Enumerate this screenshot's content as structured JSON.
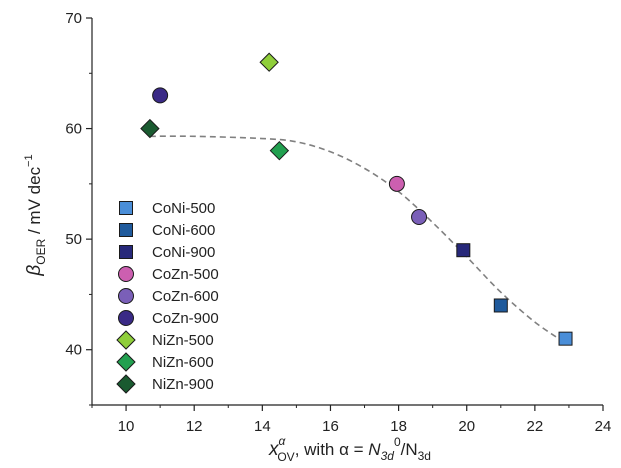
{
  "chart_data": {
    "type": "scatter",
    "xlim": [
      9,
      24
    ],
    "ylim": [
      35,
      70
    ],
    "x_ticks": [
      10,
      12,
      14,
      16,
      18,
      20,
      22,
      24
    ],
    "y_ticks": [
      40,
      50,
      60,
      70
    ],
    "x_minor_ticks": [
      9,
      11,
      13,
      15,
      17,
      19,
      21,
      23
    ],
    "y_minor_ticks": [
      35,
      45,
      55,
      65
    ],
    "ylabel": {
      "symbol": "β",
      "subscript": "OER",
      "units": " / mV dec",
      "units_superscript": "−1"
    },
    "xlabel": {
      "symbol": "x",
      "subscript": "OV",
      "superscript": "α",
      "text": ",  with α = ",
      "n1": "N",
      "n1_sub": "3d",
      "n1_sup": "0",
      "slash": "/N",
      "n2_sub": "3d"
    },
    "grid": false,
    "legend_position": "left",
    "series": [
      {
        "name": "CoNi-500",
        "marker": "square",
        "color": "#4a8ed8",
        "points": [
          [
            22.9,
            41
          ]
        ]
      },
      {
        "name": "CoNi-600",
        "marker": "square",
        "color": "#1f5a9c",
        "points": [
          [
            21.0,
            44
          ]
        ]
      },
      {
        "name": "CoNi-900",
        "marker": "square",
        "color": "#27287a",
        "points": [
          [
            19.9,
            49
          ]
        ]
      },
      {
        "name": "CoZn-500",
        "marker": "circle",
        "color": "#cc5fb0",
        "points": [
          [
            17.95,
            55
          ]
        ]
      },
      {
        "name": "CoZn-600",
        "marker": "circle",
        "color": "#7a5fb8",
        "points": [
          [
            18.6,
            52
          ]
        ]
      },
      {
        "name": "CoZn-900",
        "marker": "circle",
        "color": "#3a2a86",
        "points": [
          [
            11.0,
            63
          ]
        ]
      },
      {
        "name": "NiZn-500",
        "marker": "diamond",
        "color": "#8fce3a",
        "points": [
          [
            14.2,
            66
          ]
        ]
      },
      {
        "name": "NiZn-600",
        "marker": "diamond",
        "color": "#22a050",
        "points": [
          [
            14.5,
            58
          ]
        ]
      },
      {
        "name": "NiZn-900",
        "marker": "diamond",
        "color": "#1a5a30",
        "points": [
          [
            10.7,
            60
          ]
        ]
      }
    ],
    "fit_curve": {
      "style": "dashed",
      "color": "#808080",
      "points": [
        [
          10.7,
          59.3
        ],
        [
          12,
          59.3
        ],
        [
          14,
          59.1
        ],
        [
          15,
          58.8
        ],
        [
          16,
          57.9
        ],
        [
          17,
          56.4
        ],
        [
          18,
          54.3
        ],
        [
          19,
          51.5
        ],
        [
          20,
          48.4
        ],
        [
          21,
          45.2
        ],
        [
          22,
          42.5
        ],
        [
          22.9,
          40.6
        ]
      ]
    }
  }
}
